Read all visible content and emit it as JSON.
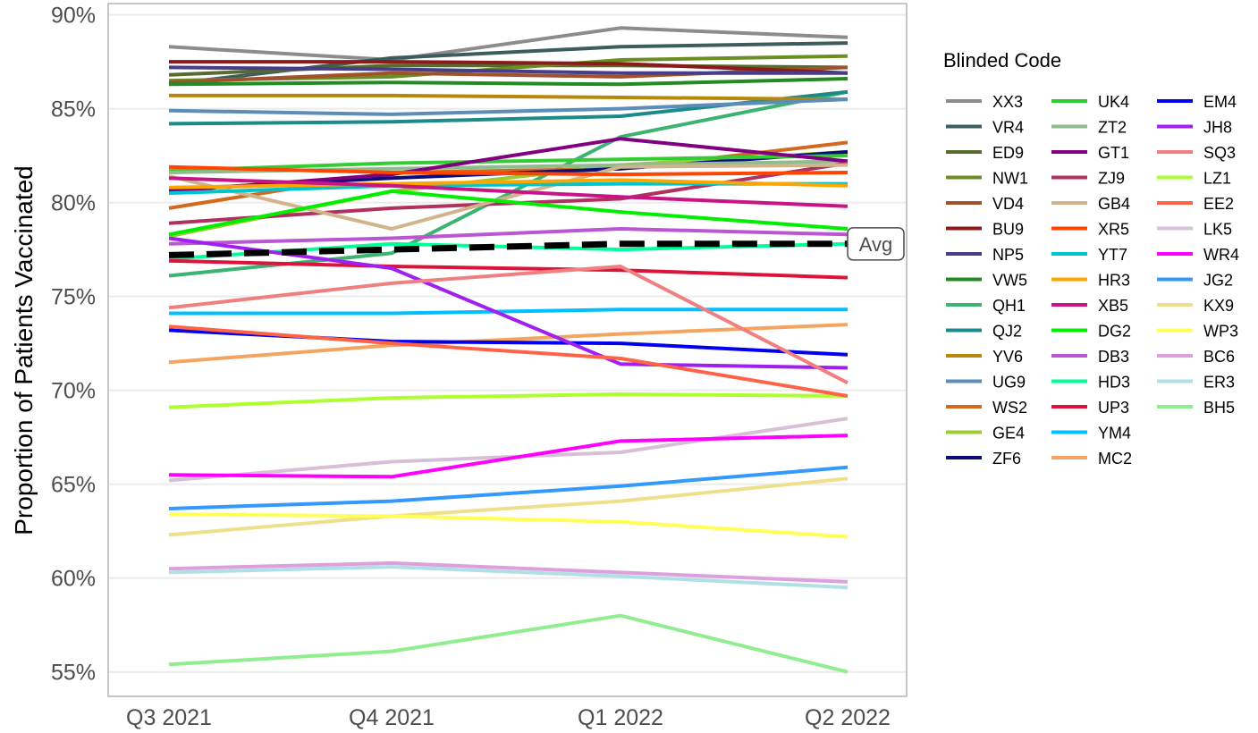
{
  "chart_data": {
    "type": "line",
    "xlabel": "",
    "ylabel": "Proportion of Patients Vaccinated",
    "categories": [
      "Q3 2021",
      "Q4 2021",
      "Q1 2022",
      "Q2 2022"
    ],
    "ylim": [
      53.7,
      90.6
    ],
    "yticks": [
      55,
      60,
      65,
      70,
      75,
      80,
      85,
      90
    ],
    "ytick_labels": [
      "55%",
      "60%",
      "65%",
      "70%",
      "75%",
      "80%",
      "85%",
      "90%"
    ],
    "grid": "horizontal",
    "legend": {
      "title": "Blinded Code",
      "position": "right",
      "columns": 3
    },
    "series": [
      {
        "name": "XX3",
        "color": "#8c8c8c",
        "values": [
          88.3,
          87.6,
          89.3,
          88.8
        ]
      },
      {
        "name": "VR4",
        "color": "#3d5c5c",
        "values": [
          86.3,
          87.7,
          88.3,
          88.5
        ]
      },
      {
        "name": "ED9",
        "color": "#556b2f",
        "values": [
          86.8,
          87.3,
          87.3,
          87.2
        ]
      },
      {
        "name": "NW1",
        "color": "#6b8e23",
        "values": [
          86.5,
          86.7,
          87.6,
          87.8
        ]
      },
      {
        "name": "VD4",
        "color": "#a0522d",
        "values": [
          86.4,
          86.9,
          86.7,
          87.2
        ]
      },
      {
        "name": "BU9",
        "color": "#8b1a1a",
        "values": [
          87.5,
          87.5,
          87.4,
          86.9
        ]
      },
      {
        "name": "NP5",
        "color": "#483d8b",
        "values": [
          87.2,
          87.1,
          86.9,
          86.9
        ]
      },
      {
        "name": "VW5",
        "color": "#228b22",
        "values": [
          86.3,
          86.4,
          86.3,
          86.6
        ]
      },
      {
        "name": "QH1",
        "color": "#3cb371",
        "values": [
          76.1,
          77.3,
          83.5,
          85.9
        ]
      },
      {
        "name": "QJ2",
        "color": "#1a8a8a",
        "values": [
          84.2,
          84.3,
          84.6,
          85.9
        ]
      },
      {
        "name": "YV6",
        "color": "#b8860b",
        "values": [
          85.7,
          85.7,
          85.6,
          85.5
        ]
      },
      {
        "name": "UG9",
        "color": "#5b8db8",
        "values": [
          84.9,
          84.7,
          85.0,
          85.5
        ]
      },
      {
        "name": "WS2",
        "color": "#d2691e",
        "values": [
          79.7,
          81.6,
          81.8,
          83.2
        ]
      },
      {
        "name": "GE4",
        "color": "#9acd32",
        "values": [
          78.2,
          80.6,
          82.0,
          82.7
        ]
      },
      {
        "name": "ZF6",
        "color": "#0d0d7a",
        "values": [
          80.7,
          81.3,
          81.8,
          82.7
        ]
      },
      {
        "name": "UK4",
        "color": "#33cc33",
        "values": [
          81.7,
          82.1,
          82.3,
          82.5
        ]
      },
      {
        "name": "ZT2",
        "color": "#8fbc8f",
        "values": [
          81.6,
          81.8,
          82.0,
          82.2
        ]
      },
      {
        "name": "GT1",
        "color": "#800080",
        "values": [
          80.6,
          81.5,
          83.4,
          82.2
        ]
      },
      {
        "name": "ZJ9",
        "color": "#b03060",
        "values": [
          78.9,
          79.7,
          80.2,
          82.1
        ]
      },
      {
        "name": "GB4",
        "color": "#d2b48c",
        "values": [
          81.4,
          78.6,
          81.9,
          82.0
        ]
      },
      {
        "name": "XR5",
        "color": "#ff4500",
        "values": [
          81.9,
          81.6,
          81.5,
          81.6
        ]
      },
      {
        "name": "YT7",
        "color": "#00c5cd",
        "values": [
          80.5,
          80.9,
          81.0,
          81.0
        ]
      },
      {
        "name": "HR3",
        "color": "#ffa500",
        "values": [
          80.8,
          81.0,
          81.2,
          80.9
        ]
      },
      {
        "name": "XB5",
        "color": "#c71585",
        "values": [
          81.3,
          80.9,
          80.3,
          79.8
        ]
      },
      {
        "name": "DG2",
        "color": "#00ee00",
        "values": [
          78.3,
          80.6,
          79.5,
          78.6
        ]
      },
      {
        "name": "DB3",
        "color": "#ba55d3",
        "values": [
          77.8,
          78.1,
          78.6,
          78.3
        ]
      },
      {
        "name": "HD3",
        "color": "#00ff99",
        "values": [
          77.0,
          77.8,
          77.5,
          77.8
        ]
      },
      {
        "name": "UP3",
        "color": "#dc143c",
        "values": [
          76.9,
          76.6,
          76.4,
          76.0
        ]
      },
      {
        "name": "YM4",
        "color": "#00bfff",
        "values": [
          74.1,
          74.1,
          74.3,
          74.3
        ]
      },
      {
        "name": "MC2",
        "color": "#f4a460",
        "values": [
          71.5,
          72.4,
          73.0,
          73.5
        ]
      },
      {
        "name": "EM4",
        "color": "#0000ee",
        "values": [
          73.2,
          72.6,
          72.5,
          71.9
        ]
      },
      {
        "name": "JH8",
        "color": "#a020f0",
        "values": [
          78.1,
          76.5,
          71.4,
          71.2
        ]
      },
      {
        "name": "SQ3",
        "color": "#f08080",
        "values": [
          74.4,
          75.7,
          76.6,
          70.4
        ]
      },
      {
        "name": "LZ1",
        "color": "#adff2f",
        "values": [
          69.1,
          69.6,
          69.8,
          69.7
        ]
      },
      {
        "name": "EE2",
        "color": "#ff6347",
        "values": [
          73.4,
          72.5,
          71.7,
          69.7
        ]
      },
      {
        "name": "LK5",
        "color": "#d8bfd8",
        "values": [
          65.2,
          66.2,
          66.7,
          68.5
        ]
      },
      {
        "name": "WR4",
        "color": "#ff00ff",
        "values": [
          65.5,
          65.4,
          67.3,
          67.6
        ]
      },
      {
        "name": "JG2",
        "color": "#3399ff",
        "values": [
          63.7,
          64.1,
          64.9,
          65.9
        ]
      },
      {
        "name": "KX9",
        "color": "#eee08b",
        "values": [
          62.3,
          63.3,
          64.1,
          65.3
        ]
      },
      {
        "name": "WP3",
        "color": "#ffff55",
        "values": [
          63.4,
          63.3,
          63.0,
          62.2
        ]
      },
      {
        "name": "BC6",
        "color": "#dda0dd",
        "values": [
          60.5,
          60.8,
          60.3,
          59.8
        ]
      },
      {
        "name": "ER3",
        "color": "#b0dfe6",
        "values": [
          60.3,
          60.6,
          60.1,
          59.5
        ]
      },
      {
        "name": "BH5",
        "color": "#90ee90",
        "values": [
          55.4,
          56.1,
          58.0,
          55.0
        ]
      }
    ],
    "average": {
      "label": "Avg",
      "values": [
        77.2,
        77.5,
        77.8,
        77.8
      ],
      "style": "dashed",
      "color": "#000000"
    }
  }
}
